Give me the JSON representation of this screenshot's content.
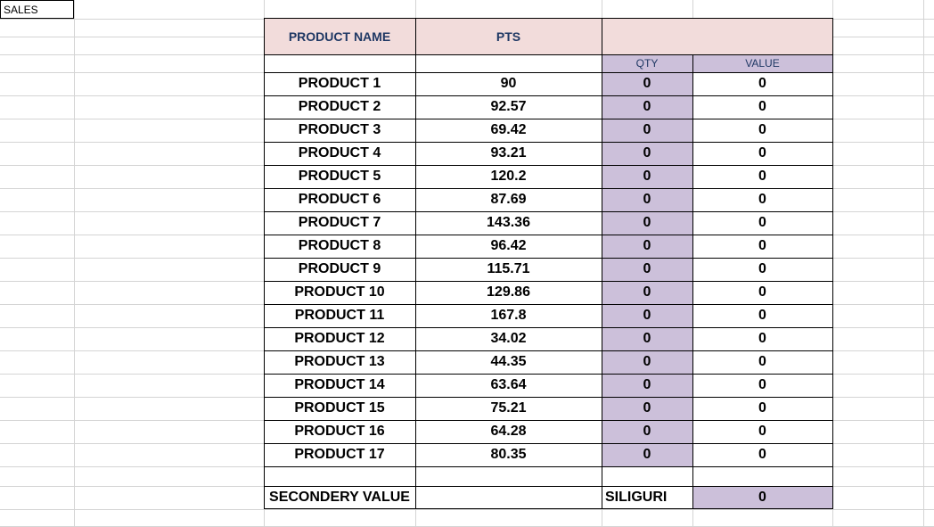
{
  "sheet": {
    "label": "SALES",
    "headers": {
      "product_name": "PRODUCT NAME",
      "pts": "PTS",
      "qty": "QTY",
      "value": "VALUE"
    },
    "colors": {
      "header_fill": "#f2dcdb",
      "highlight_fill": "#ccc0da",
      "header_text": "#1f3864",
      "grid": "#d4d4d4",
      "border": "#000000"
    },
    "rows": [
      {
        "name": "PRODUCT 1",
        "pts": "90",
        "qty": "0",
        "value": "0"
      },
      {
        "name": "PRODUCT 2",
        "pts": "92.57",
        "qty": "0",
        "value": "0"
      },
      {
        "name": "PRODUCT 3",
        "pts": "69.42",
        "qty": "0",
        "value": "0"
      },
      {
        "name": "PRODUCT 4",
        "pts": "93.21",
        "qty": "0",
        "value": "0"
      },
      {
        "name": "PRODUCT 5",
        "pts": "120.2",
        "qty": "0",
        "value": "0"
      },
      {
        "name": "PRODUCT 6",
        "pts": "87.69",
        "qty": "0",
        "value": "0"
      },
      {
        "name": "PRODUCT 7",
        "pts": "143.36",
        "qty": "0",
        "value": "0"
      },
      {
        "name": "PRODUCT 8",
        "pts": "96.42",
        "qty": "0",
        "value": "0"
      },
      {
        "name": "PRODUCT 9",
        "pts": "115.71",
        "qty": "0",
        "value": "0"
      },
      {
        "name": "PRODUCT 10",
        "pts": "129.86",
        "qty": "0",
        "value": "0"
      },
      {
        "name": "PRODUCT 11",
        "pts": "167.8",
        "qty": "0",
        "value": "0"
      },
      {
        "name": "PRODUCT 12",
        "pts": "34.02",
        "qty": "0",
        "value": "0"
      },
      {
        "name": "PRODUCT 13",
        "pts": "44.35",
        "qty": "0",
        "value": "0"
      },
      {
        "name": "PRODUCT 14",
        "pts": "63.64",
        "qty": "0",
        "value": "0"
      },
      {
        "name": "PRODUCT 15",
        "pts": "75.21",
        "qty": "0",
        "value": "0"
      },
      {
        "name": "PRODUCT 16",
        "pts": "64.28",
        "qty": "0",
        "value": "0"
      },
      {
        "name": "PRODUCT 17",
        "pts": "80.35",
        "qty": "0",
        "value": "0"
      }
    ],
    "footer": {
      "label": "SECONDERY VALUE",
      "location": "SILIGURI",
      "value": "0"
    }
  }
}
